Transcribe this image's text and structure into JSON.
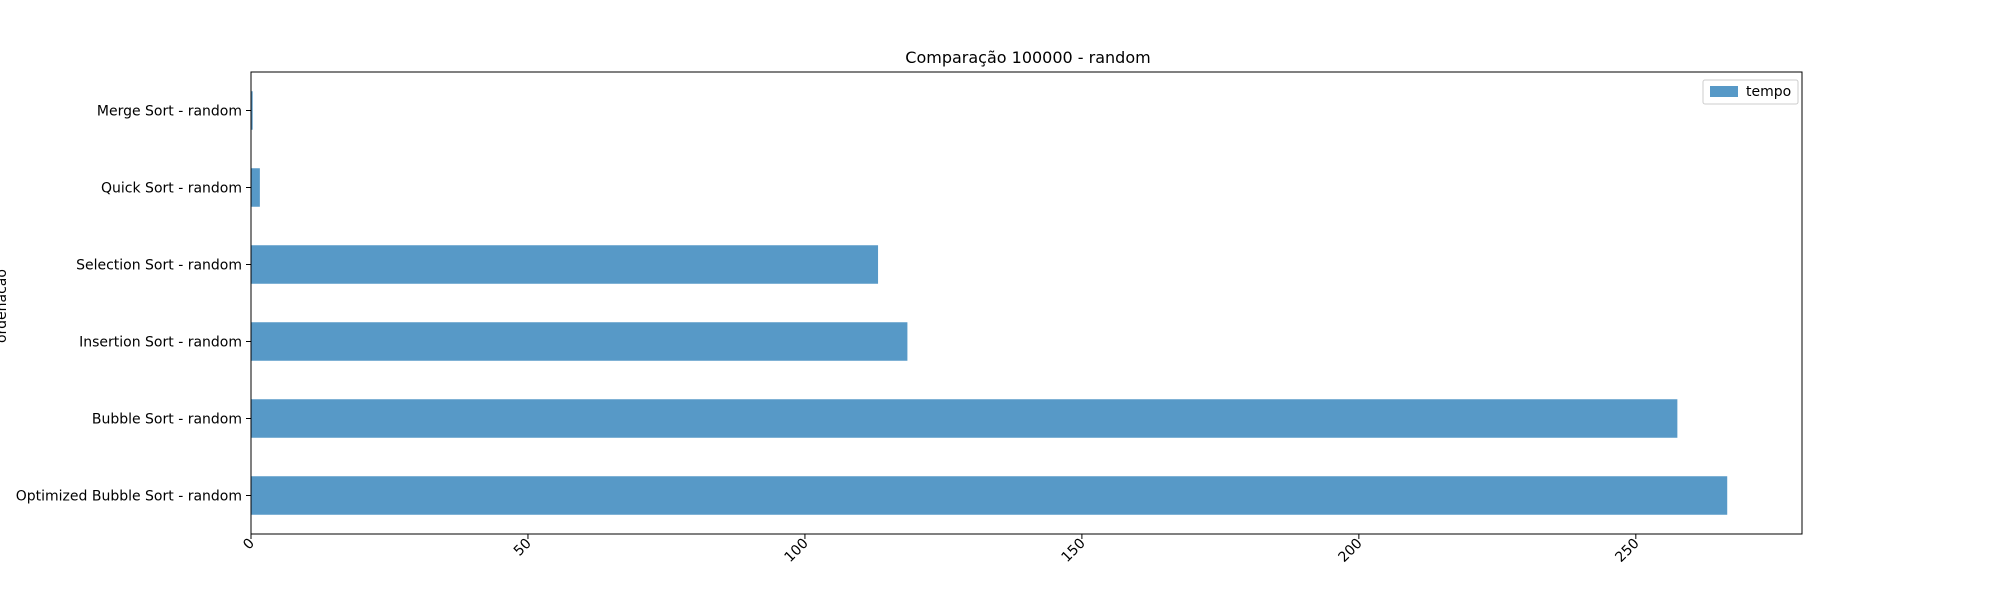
{
  "chart_data": {
    "type": "bar",
    "orientation": "horizontal",
    "title": "Comparação 100000 - random",
    "xlabel": "",
    "ylabel": "ordenacao",
    "categories": [
      "Optimized Bubble Sort - random",
      "Bubble Sort - random",
      "Insertion Sort - random",
      "Selection Sort - random",
      "Quick Sort - random",
      "Merge Sort - random"
    ],
    "series": [
      {
        "name": "tempo",
        "values": [
          266.5,
          257.5,
          118.5,
          113.2,
          1.6,
          0.3
        ]
      }
    ],
    "xlim": [
      0,
      280
    ],
    "xticks": [
      0,
      50,
      100,
      150,
      200,
      250
    ],
    "bar_color": "#5799c7",
    "legend": "top-right",
    "grid": false
  }
}
